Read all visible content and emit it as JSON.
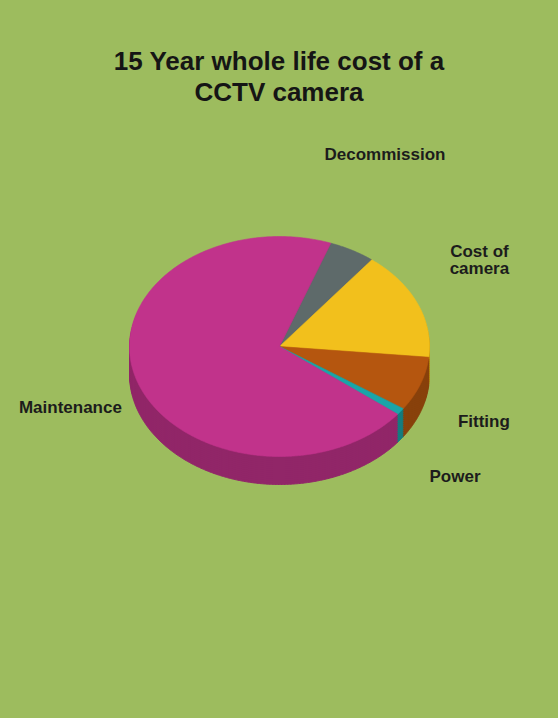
{
  "chart_data": {
    "type": "pie",
    "title": "15 Year whole life cost of a CCTV camera",
    "categories": [
      "Decommission",
      "Cost of camera",
      "Fitting",
      "Power",
      "Maintenance"
    ],
    "values": [
      5,
      16,
      8,
      1,
      70
    ],
    "colors": [
      "#5e6a6a",
      "#f2c01c",
      "#b5560f",
      "#1aa5a8",
      "#c1338b"
    ]
  }
}
